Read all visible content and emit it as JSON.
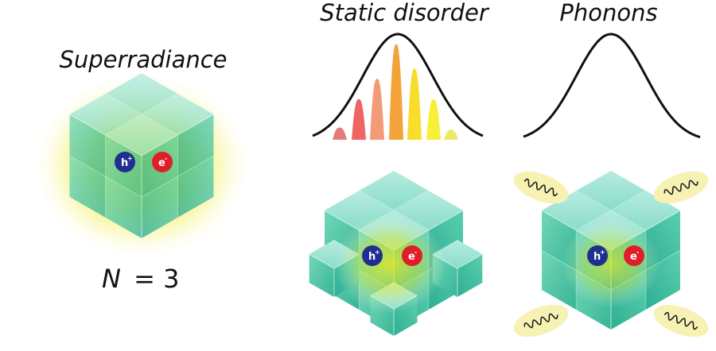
{
  "titles": {
    "superradiance": "Superradiance",
    "static_disorder": "Static disorder",
    "phonons": "Phonons"
  },
  "size_label": {
    "symbol": "N",
    "equals": "=",
    "value": "3"
  },
  "particles": {
    "hole": {
      "base": "h",
      "sup": "+",
      "color": "#1f2f8f"
    },
    "electron": {
      "base": "e",
      "sup": "-",
      "color": "#e01e2a"
    }
  },
  "colors": {
    "cube_side": "#4fc9a8",
    "cube_top": "#9fe6d6",
    "glow": "#f2ef1a",
    "curve": "#111111",
    "phonon_halo": "#f7f2b4"
  },
  "disorder_peaks": [
    {
      "color": "#e37b7b",
      "height": 0.12
    },
    {
      "color": "#ef6464",
      "height": 0.4
    },
    {
      "color": "#f39a76",
      "height": 0.6
    },
    {
      "color": "#f4a23a",
      "height": 0.94
    },
    {
      "color": "#f7de2c",
      "height": 0.7
    },
    {
      "color": "#f7ef3a",
      "height": 0.4
    },
    {
      "color": "#ece96a",
      "height": 0.1
    }
  ]
}
